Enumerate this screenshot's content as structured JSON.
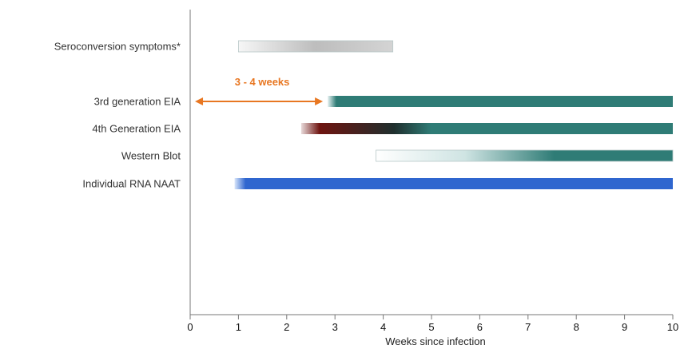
{
  "chart_data": {
    "type": "timeline",
    "title": "",
    "xlabel": "Weeks since infection",
    "ylabel": "",
    "xlim": [
      0,
      10
    ],
    "xticks": [
      "0",
      "1",
      "2",
      "3",
      "4",
      "5",
      "6",
      "7",
      "8",
      "9",
      "10"
    ],
    "grid": false,
    "bars": [
      {
        "label": "Seroconversion symptoms*",
        "start": 1.0,
        "end": 4.2,
        "style": "gray-fade",
        "colors": [
          "#f6f6f6",
          "#bdbdbd",
          "#d4d4d4"
        ]
      },
      {
        "label": "3rd generation EIA",
        "start": 2.85,
        "end": 10.0,
        "style": "teal",
        "colors": [
          "#e6f1f1",
          "#2f7c76",
          "#2f7c76"
        ]
      },
      {
        "label": "4th Generation EIA",
        "start": 2.3,
        "end": 10.0,
        "style": "red-to-teal",
        "colors": [
          "#e8dada",
          "#6e1410",
          "#2f7c76"
        ]
      },
      {
        "label": "Western Blot",
        "start": 3.85,
        "end": 10.0,
        "style": "white-to-teal",
        "colors": [
          "#ffffff",
          "#cfe4e3",
          "#2f7c76"
        ]
      },
      {
        "label": "Individual RNA NAAT",
        "start": 0.92,
        "end": 10.0,
        "style": "blue",
        "colors": [
          "#d9e6fa",
          "#2f66cf",
          "#2f66cf"
        ]
      }
    ],
    "annotations": [
      {
        "text": "3 - 4 weeks",
        "type": "double-arrow",
        "from": 0.1,
        "to": 2.75,
        "row": "3rd generation EIA",
        "color": "#e87722"
      }
    ]
  }
}
